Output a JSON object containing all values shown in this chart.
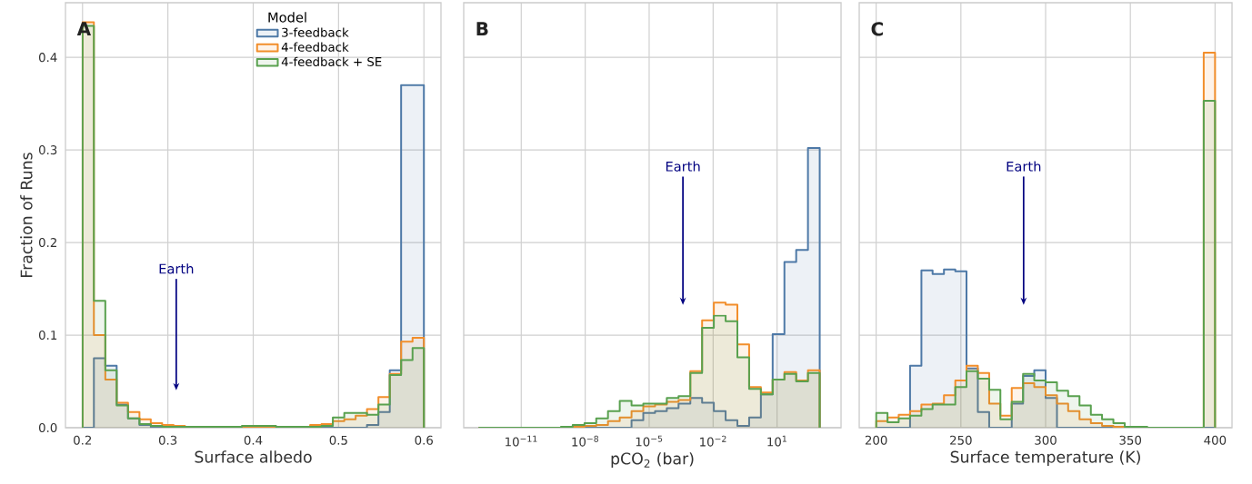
{
  "chart_data": [
    {
      "type": "histogram",
      "title": "A",
      "xlabel": "Surface albedo",
      "ylabel": "Fraction of Runs",
      "legend_title": "Model",
      "legend": "top right",
      "grid": true,
      "xlim": [
        0.18,
        0.62
      ],
      "xticks": [
        0.2,
        0.3,
        0.4,
        0.5,
        0.6
      ],
      "ylim": [
        0,
        0.459
      ],
      "yticks": [
        {
          "value": 0,
          "label": "0.0"
        },
        0.1,
        0.2,
        0.3,
        0.4
      ],
      "annotations": [
        "Earth"
      ],
      "bins": [
        0.2,
        0.2133,
        0.2267,
        0.24,
        0.2533,
        0.2667,
        0.28,
        0.2933,
        0.3067,
        0.32,
        0.3333,
        0.3467,
        0.36,
        0.3733,
        0.3867,
        0.4,
        0.4133,
        0.4267,
        0.44,
        0.4533,
        0.4667,
        0.48,
        0.4933,
        0.5067,
        0.52,
        0.5333,
        0.5467,
        0.56,
        0.5733,
        0.5867,
        0.6
      ],
      "series": [
        {
          "name": "3-feedback",
          "color": "#4e79a7",
          "values": [
            0,
            0.075,
            0.067,
            0.025,
            0.01,
            0.003,
            0,
            0,
            0,
            0,
            0,
            0,
            0,
            0,
            0,
            0,
            0,
            0,
            0,
            0,
            0,
            0,
            0,
            0,
            0,
            0.003,
            0.017,
            0.062,
            0.37,
            0.37
          ]
        },
        {
          "name": "4-feedback",
          "color": "#f28e2b",
          "values": [
            0.438,
            0.1,
            0.052,
            0.027,
            0.017,
            0.009,
            0.005,
            0.003,
            0.002,
            0.001,
            0.001,
            0.001,
            0.001,
            0.001,
            0.001,
            0.001,
            0.001,
            0.001,
            0.001,
            0.001,
            0.003,
            0.004,
            0.007,
            0.009,
            0.013,
            0.02,
            0.033,
            0.058,
            0.093,
            0.097
          ]
        },
        {
          "name": "4-feedback + SE",
          "color": "#59a14f",
          "values": [
            0.434,
            0.137,
            0.062,
            0.024,
            0.01,
            0.004,
            0.002,
            0.001,
            0.001,
            0.001,
            0.001,
            0.001,
            0.001,
            0.001,
            0.002,
            0.002,
            0.002,
            0.001,
            0.001,
            0.001,
            0.001,
            0.002,
            0.011,
            0.016,
            0.016,
            0.014,
            0.025,
            0.057,
            0.073,
            0.086
          ]
        }
      ]
    },
    {
      "type": "histogram",
      "title": "B",
      "xlabel": "pCO$_{2}$ (bar)",
      "grid": true,
      "log": "x",
      "tick_labels": "x",
      "xlim": [
        2e-14,
        10000.0
      ],
      "xticks": [
        {
          "value": 1e-11,
          "label": "10$^{−11}$"
        },
        {
          "value": 1e-08,
          "label": "10$^{−8}$"
        },
        {
          "value": 1e-05,
          "label": "10$^{−5}$"
        },
        {
          "value": 0.01,
          "label": "10$^{−2}$"
        },
        {
          "value": 10,
          "label": "10$^{1}$"
        }
      ],
      "ylim": [
        0,
        0.459
      ],
      "yticks": [
        0,
        0.1,
        0.2,
        0.3,
        0.4
      ],
      "annotations": [
        "Earth"
      ],
      "bins": [
        1e-13,
        3.56e-13,
        1.27e-12,
        4.52e-12,
        1.61e-11,
        5.74e-11,
        2.04e-10,
        7.28e-10,
        2.59e-09,
        9.24e-09,
        3.29e-08,
        1.17e-07,
        4.17e-07,
        1.49e-06,
        5.3e-06,
        1.89e-05,
        6.72e-05,
        0.000239,
        0.000853,
        0.00304,
        0.0108,
        0.0386,
        0.137,
        0.489,
        1.74,
        6.21,
        22.1,
        78.8,
        281,
        1000
      ],
      "series": [
        {
          "color": "#4e79a7",
          "values": [
            0,
            0,
            0,
            0,
            0,
            0,
            0,
            0,
            0,
            0,
            0,
            0,
            0,
            0.008,
            0.016,
            0.018,
            0.021,
            0.026,
            0.032,
            0.027,
            0.018,
            0.008,
            0.002,
            0.011,
            0.036,
            0.101,
            0.179,
            0.192,
            0.302
          ]
        },
        {
          "color": "#f28e2b",
          "values": [
            0,
            0,
            0,
            0,
            0,
            0,
            0,
            0,
            0.001,
            0.002,
            0.003,
            0.007,
            0.011,
            0.018,
            0.023,
            0.025,
            0.028,
            0.03,
            0.061,
            0.116,
            0.135,
            0.133,
            0.09,
            0.044,
            0.038,
            0.052,
            0.06,
            0.051,
            0.062
          ]
        },
        {
          "color": "#59a14f",
          "values": [
            0,
            0,
            0,
            0,
            0,
            0,
            0,
            0.001,
            0.003,
            0.005,
            0.01,
            0.018,
            0.029,
            0.024,
            0.026,
            0.026,
            0.032,
            0.034,
            0.059,
            0.108,
            0.121,
            0.115,
            0.076,
            0.042,
            0.036,
            0.052,
            0.058,
            0.05,
            0.059
          ]
        }
      ]
    },
    {
      "type": "histogram",
      "title": "C",
      "xlabel": "Surface temperature (K)",
      "grid": true,
      "tick_labels": "x",
      "xlim": [
        190,
        410
      ],
      "xticks": [
        200,
        250,
        300,
        350,
        400
      ],
      "ylim": [
        0,
        0.459
      ],
      "yticks": [
        0,
        0.1,
        0.2,
        0.3,
        0.4
      ],
      "annotations": [
        "Earth"
      ],
      "bins": [
        200,
        206.7,
        213.3,
        220,
        226.7,
        233.3,
        240,
        246.7,
        253.3,
        260,
        266.7,
        273.3,
        280,
        286.7,
        293.3,
        300,
        306.7,
        313.3,
        320,
        326.7,
        333.3,
        340,
        346.7,
        353.3,
        360,
        366.7,
        373.3,
        380,
        386.7,
        393.3,
        400
      ],
      "series": [
        {
          "color": "#4e79a7",
          "values": [
            0,
            0,
            0,
            0.067,
            0.17,
            0.166,
            0.171,
            0.169,
            0.064,
            0.017,
            0,
            0,
            0.026,
            0.056,
            0.062,
            0.032,
            0,
            0,
            0,
            0,
            0,
            0,
            0,
            0,
            0,
            0,
            0,
            0,
            0,
            0
          ]
        },
        {
          "color": "#f28e2b",
          "values": [
            0.007,
            0.011,
            0.014,
            0.018,
            0.025,
            0.026,
            0.035,
            0.051,
            0.067,
            0.059,
            0.026,
            0.013,
            0.043,
            0.048,
            0.044,
            0.035,
            0.026,
            0.018,
            0.009,
            0.005,
            0.002,
            0.001,
            0,
            0,
            0,
            0,
            0,
            0,
            0,
            0.405
          ]
        },
        {
          "color": "#59a14f",
          "values": [
            0.016,
            0.006,
            0.01,
            0.013,
            0.02,
            0.025,
            0.025,
            0.044,
            0.061,
            0.053,
            0.041,
            0.009,
            0.028,
            0.058,
            0.051,
            0.049,
            0.04,
            0.034,
            0.024,
            0.014,
            0.009,
            0.005,
            0.001,
            0.001,
            0,
            0,
            0,
            0,
            0,
            0.353
          ]
        }
      ]
    }
  ]
}
